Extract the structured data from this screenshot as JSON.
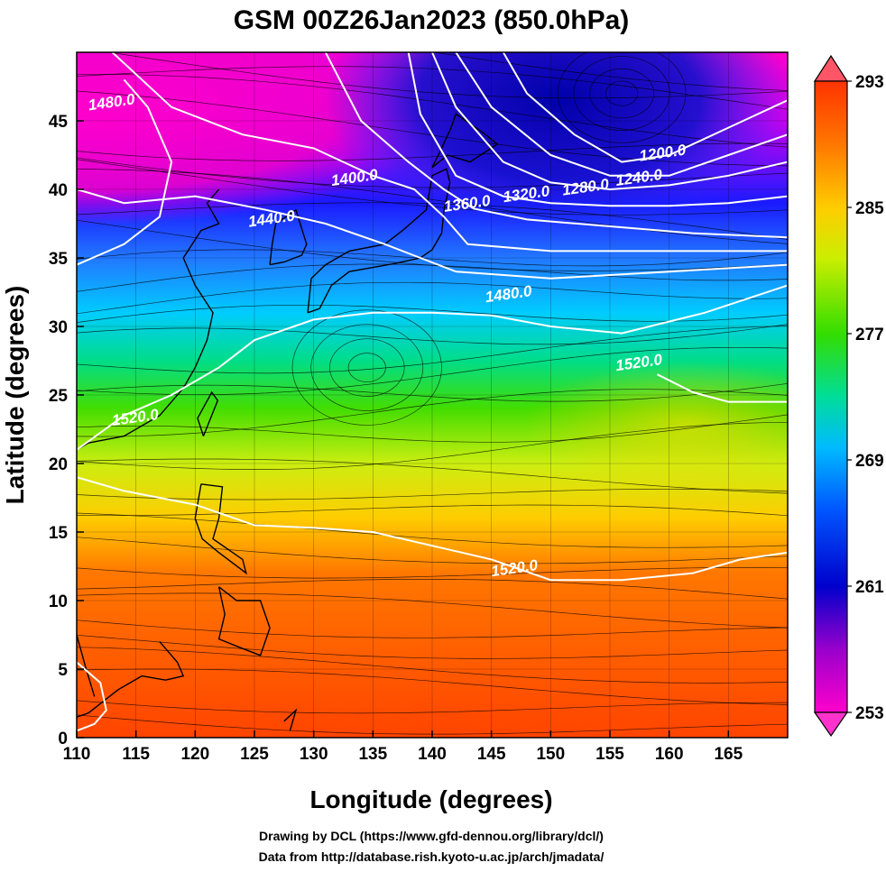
{
  "title": "GSM 00Z26Jan2023 (850.0hPa)",
  "xaxis": {
    "label": "Longitude (degrees)",
    "range": [
      110,
      170
    ],
    "ticks": [
      110,
      115,
      120,
      125,
      130,
      135,
      140,
      145,
      150,
      155,
      160,
      165
    ]
  },
  "yaxis": {
    "label": "Latitude  (degrees)",
    "range": [
      0,
      50
    ],
    "ticks": [
      0,
      5,
      10,
      15,
      20,
      25,
      30,
      35,
      40,
      45
    ]
  },
  "colorbar": {
    "range": [
      253,
      293
    ],
    "labels": [
      293,
      285,
      277,
      269,
      261,
      253
    ],
    "colors": [
      "#ff00cc",
      "#9900cc",
      "#0000cc",
      "#0055ff",
      "#00bbff",
      "#00dd99",
      "#33dd00",
      "#ccee00",
      "#ffcc00",
      "#ff7700",
      "#ff3300"
    ]
  },
  "contours": [
    {
      "label": "1200.0",
      "lon": 159.5,
      "lat": 42.3
    },
    {
      "label": "1240.0",
      "lon": 157.5,
      "lat": 40.5
    },
    {
      "label": "1280.0",
      "lon": 153.0,
      "lat": 39.8
    },
    {
      "label": "1320.0",
      "lon": 148.0,
      "lat": 39.3
    },
    {
      "label": "1360.0",
      "lon": 143.0,
      "lat": 38.6
    },
    {
      "label": "1400.0",
      "lon": 133.5,
      "lat": 40.5
    },
    {
      "label": "1440.0",
      "lon": 126.5,
      "lat": 37.5
    },
    {
      "label": "1480.0",
      "lon": 113.0,
      "lat": 46.0
    },
    {
      "label": "1480.0",
      "lon": 146.5,
      "lat": 32.0
    },
    {
      "label": "1520.0",
      "lon": 157.5,
      "lat": 27.0
    },
    {
      "label": "1520.0",
      "lon": 115.0,
      "lat": 23.0
    },
    {
      "label": "1520.0",
      "lon": 147.0,
      "lat": 12.0
    }
  ],
  "credits": [
    "Drawing by DCL (https://www.gfd-dennou.org/library/dcl/)",
    "Data from http://database.rish.kyoto-u.ac.jp/arch/jmadata/"
  ]
}
